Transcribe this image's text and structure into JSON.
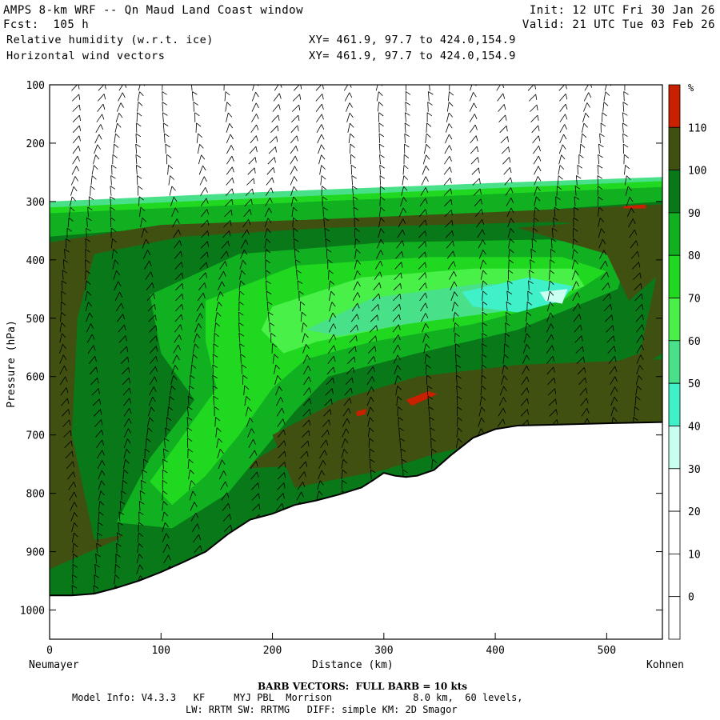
{
  "header": {
    "title": "AMPS 8-km WRF -- Qn Maud Land Coast window",
    "fcst": "Fcst:  105 h",
    "init": "Init: 12 UTC Fri 30 Jan 26",
    "valid": "Valid: 21 UTC Tue 03 Feb 26",
    "field1": "Relative humidity (w.r.t. ice)",
    "field2": "Horizontal wind vectors",
    "xy1": "XY= 461.9, 97.7 to 424.0,154.9",
    "xy2": "XY= 461.9, 97.7 to 424.0,154.9"
  },
  "footer": {
    "barb": "BARB VECTORS:  FULL BARB = 10 kts",
    "model_line1": "Model Info: V4.3.3   KF     MYJ PBL  Morrison              8.0 km,  60 levels,",
    "model_line2": "LW: RRTM SW: RRTMG   DIFF: simple KM: 2D Smagor"
  },
  "chart_data": {
    "type": "heatmap",
    "subtype": "cross-section contour fill with wind barbs",
    "xlabel": "Distance (km)",
    "ylabel": "Pressure (hPa)",
    "x_start_label": "Neumayer",
    "x_end_label": "Kohnen",
    "xlim": [
      0,
      550
    ],
    "ylim": [
      100,
      1050
    ],
    "x_ticks": [
      0,
      100,
      200,
      300,
      400,
      500
    ],
    "y_ticks": [
      100,
      200,
      300,
      400,
      500,
      600,
      700,
      800,
      900,
      1000
    ],
    "colorbar": {
      "unit": "%",
      "levels": [
        0,
        10,
        20,
        30,
        40,
        50,
        60,
        70,
        80,
        90,
        100,
        110
      ],
      "colors": [
        "#ffffff",
        "#ffffff",
        "#ffffff",
        "#c8fff0",
        "#40f0c8",
        "#48e088",
        "#48f048",
        "#20d820",
        "#10b020",
        "#087818",
        "#405010",
        "#c82000"
      ]
    },
    "terrain_profile": [
      [
        0,
        975
      ],
      [
        20,
        975
      ],
      [
        40,
        972
      ],
      [
        60,
        962
      ],
      [
        80,
        950
      ],
      [
        100,
        935
      ],
      [
        120,
        918
      ],
      [
        140,
        900
      ],
      [
        160,
        870
      ],
      [
        180,
        845
      ],
      [
        200,
        835
      ],
      [
        220,
        820
      ],
      [
        240,
        812
      ],
      [
        260,
        802
      ],
      [
        280,
        790
      ],
      [
        290,
        778
      ],
      [
        300,
        765
      ],
      [
        310,
        770
      ],
      [
        320,
        772
      ],
      [
        330,
        770
      ],
      [
        345,
        760
      ],
      [
        360,
        735
      ],
      [
        380,
        705
      ],
      [
        400,
        690
      ],
      [
        420,
        684
      ],
      [
        460,
        682
      ],
      [
        500,
        680
      ],
      [
        550,
        678
      ]
    ]
  }
}
